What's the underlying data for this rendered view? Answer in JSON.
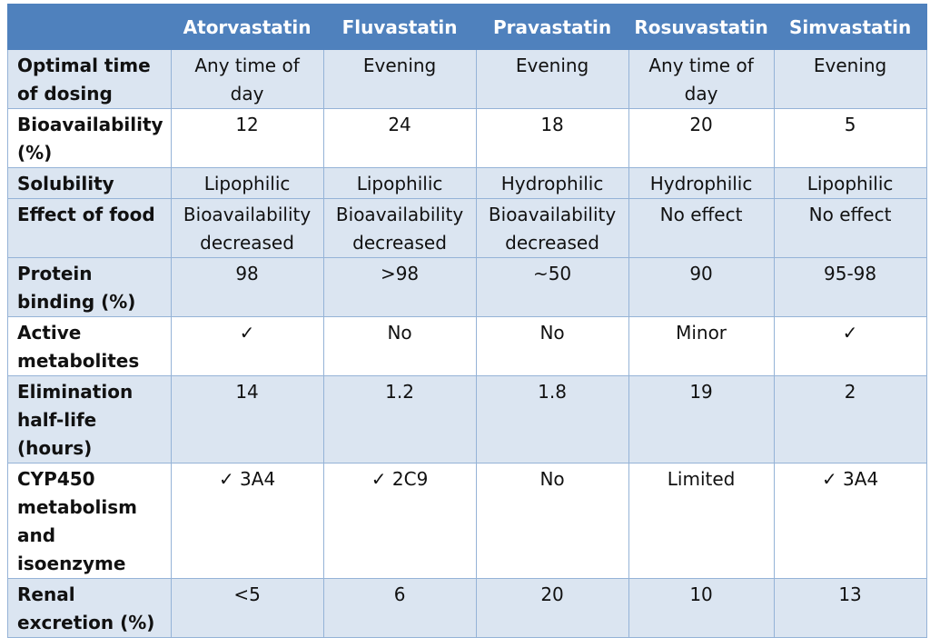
{
  "table": {
    "columns": [
      "",
      "Atorvastatin",
      "Fluvastatin",
      "Pravastatin",
      "Rosuvastatin",
      "Simvastatin"
    ],
    "rows": [
      {
        "label": "Optimal time of dosing",
        "cells": [
          "Any time of day",
          "Evening",
          "Evening",
          "Any time of day",
          "Evening"
        ]
      },
      {
        "label": "Bioavailability (%)",
        "cells": [
          "12",
          "24",
          "18",
          "20",
          "5"
        ]
      },
      {
        "label": "Solubility",
        "cells": [
          "Lipophilic",
          "Lipophilic",
          "Hydrophilic",
          "Hydrophilic",
          "Lipophilic"
        ]
      },
      {
        "label": "Effect of food",
        "cells": [
          "Bioavailability decreased",
          "Bioavailability decreased",
          "Bioavailability decreased",
          "No effect",
          "No effect"
        ]
      },
      {
        "label": "Protein binding (%)",
        "cells": [
          "98",
          ">98",
          "~50",
          "90",
          "95-98"
        ]
      },
      {
        "label": "Active metabolites",
        "cells": [
          "✓",
          "No",
          "No",
          "Minor",
          "✓"
        ]
      },
      {
        "label": "Elimination half-life (hours)",
        "cells": [
          "14",
          "1.2",
          "1.8",
          "19",
          "2"
        ]
      },
      {
        "label": "CYP450 metabolism and isoenzyme",
        "cells": [
          "✓ 3A4",
          "✓ 2C9",
          "No",
          "Limited",
          "✓ 3A4"
        ]
      },
      {
        "label": "Renal excretion (%)",
        "cells": [
          "<5",
          "6",
          "20",
          "10",
          "13"
        ]
      }
    ]
  },
  "colors": {
    "header_bg": "#4f81bd",
    "header_text": "#ffffff",
    "band_bg": "#dbe5f1",
    "border": "#95b3d7"
  }
}
